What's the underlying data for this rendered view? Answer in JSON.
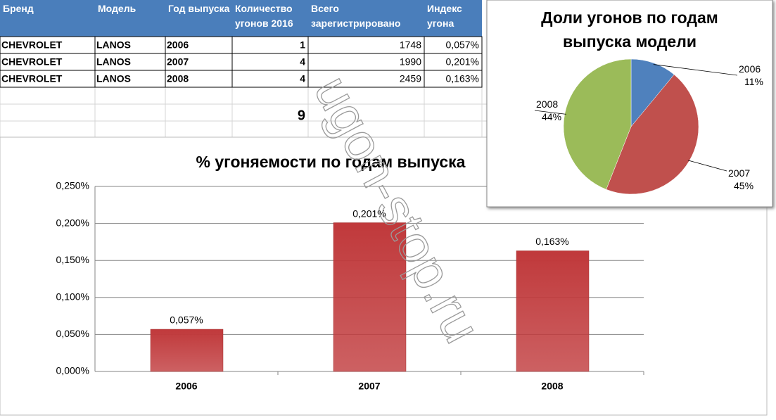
{
  "table": {
    "headers": [
      "Бренд",
      "Модель",
      "Год выпуска",
      "Количество угонов 2016",
      "Всего зарегистрировано",
      "Индекс угона"
    ],
    "rows": [
      [
        "CHEVROLET",
        "LANOS",
        "2006",
        1,
        1748,
        "0,057%"
      ],
      [
        "CHEVROLET",
        "LANOS",
        "2007",
        4,
        1990,
        "0,201%"
      ],
      [
        "CHEVROLET",
        "LANOS",
        "2008",
        4,
        2459,
        "0,163%"
      ]
    ],
    "total": 9
  },
  "watermark": "ugon-stop.ru",
  "chart_data": [
    {
      "type": "bar",
      "title": "% угоняемости по годам выпуска",
      "categories": [
        "2006",
        "2007",
        "2008"
      ],
      "values": [
        0.057,
        0.201,
        0.163
      ],
      "value_labels": [
        "0,057%",
        "0,201%",
        "0,163%"
      ],
      "color": "#c0393b",
      "ylim": [
        0,
        0.25
      ],
      "yticks": [
        {
          "value": 0,
          "label": "0,000%"
        },
        {
          "value": 0.05,
          "label": "0,050%"
        },
        {
          "value": 0.1,
          "label": "0,100%"
        },
        {
          "value": 0.15,
          "label": "0,150%"
        },
        {
          "value": 0.2,
          "label": "0,200%"
        },
        {
          "value": 0.25,
          "label": "0,250%"
        }
      ],
      "grid": true
    },
    {
      "type": "pie",
      "title": "Доли угонов по годам выпуска модели",
      "categories": [
        "2006",
        "2007",
        "2008"
      ],
      "values": [
        11,
        45,
        44
      ],
      "value_labels": [
        "11%",
        "45%",
        "44%"
      ],
      "colors": [
        "#4f81bd",
        "#c0504d",
        "#9bbb59"
      ]
    }
  ]
}
